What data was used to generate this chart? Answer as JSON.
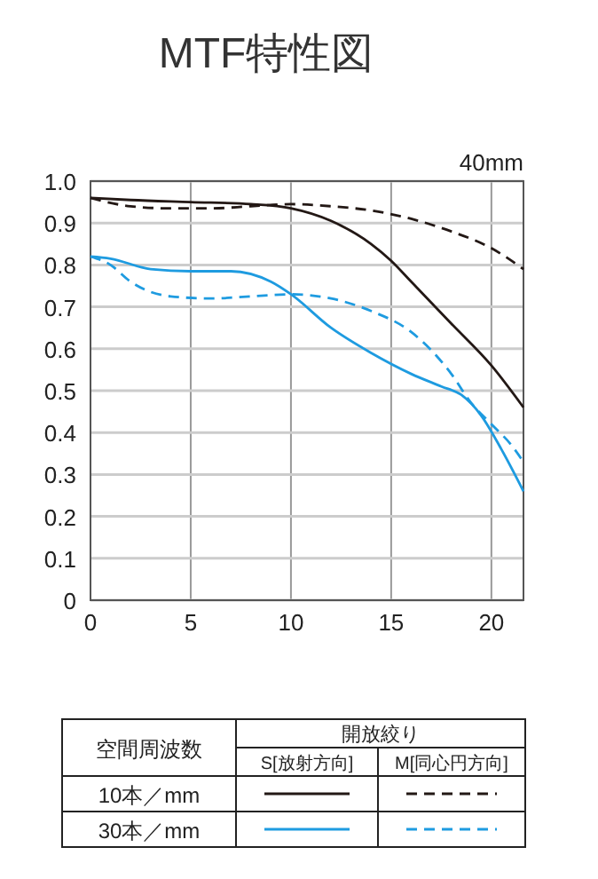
{
  "chart_data": {
    "type": "line",
    "title": "MTF特性図",
    "xlim": [
      0,
      21.6
    ],
    "ylim": [
      0,
      1
    ],
    "xticks": [
      0,
      5,
      10,
      15,
      20
    ],
    "yticks": [
      0,
      0.1,
      0.2,
      0.3,
      0.4,
      0.5,
      0.6,
      0.7,
      0.8,
      0.9,
      {
        "value": 1,
        "label": "1.0"
      }
    ],
    "grid": true,
    "annotations": [
      "40mm",
      "空間周波数",
      "開放絞り",
      "S[放射方向]",
      "M[同心円方向]",
      "10本／mm",
      "30本／mm"
    ],
    "series": [
      {
        "color": "#231815",
        "line_style": "solid",
        "x": [
          0,
          2,
          5,
          8,
          10,
          12,
          14,
          15,
          16,
          18,
          20,
          21.6
        ],
        "values": [
          0.96,
          0.955,
          0.95,
          0.945,
          0.935,
          0.905,
          0.85,
          0.81,
          0.76,
          0.66,
          0.56,
          0.46
        ]
      },
      {
        "color": "#231815",
        "line_style": "dashed",
        "x": [
          0,
          2,
          4,
          6,
          8,
          10,
          12,
          14,
          16,
          18,
          20,
          21.6
        ],
        "values": [
          0.96,
          0.94,
          0.935,
          0.935,
          0.94,
          0.945,
          0.94,
          0.93,
          0.91,
          0.88,
          0.84,
          0.79
        ]
      },
      {
        "color": "#1e9be0",
        "line_style": "solid",
        "x": [
          0,
          1,
          3,
          5,
          7,
          9,
          10,
          12,
          14,
          16,
          17.5,
          18.5,
          19.5,
          20.5,
          21.6
        ],
        "values": [
          0.82,
          0.815,
          0.79,
          0.785,
          0.785,
          0.76,
          0.73,
          0.65,
          0.59,
          0.54,
          0.51,
          0.49,
          0.44,
          0.36,
          0.26
        ]
      },
      {
        "color": "#1e9be0",
        "line_style": "dashed",
        "x": [
          0,
          1,
          2,
          4,
          6,
          8,
          10,
          12,
          14,
          16,
          18,
          19,
          20,
          21,
          21.6
        ],
        "values": [
          0.82,
          0.8,
          0.76,
          0.725,
          0.72,
          0.725,
          0.73,
          0.72,
          0.69,
          0.64,
          0.54,
          0.47,
          0.42,
          0.37,
          0.33
        ]
      }
    ]
  }
}
